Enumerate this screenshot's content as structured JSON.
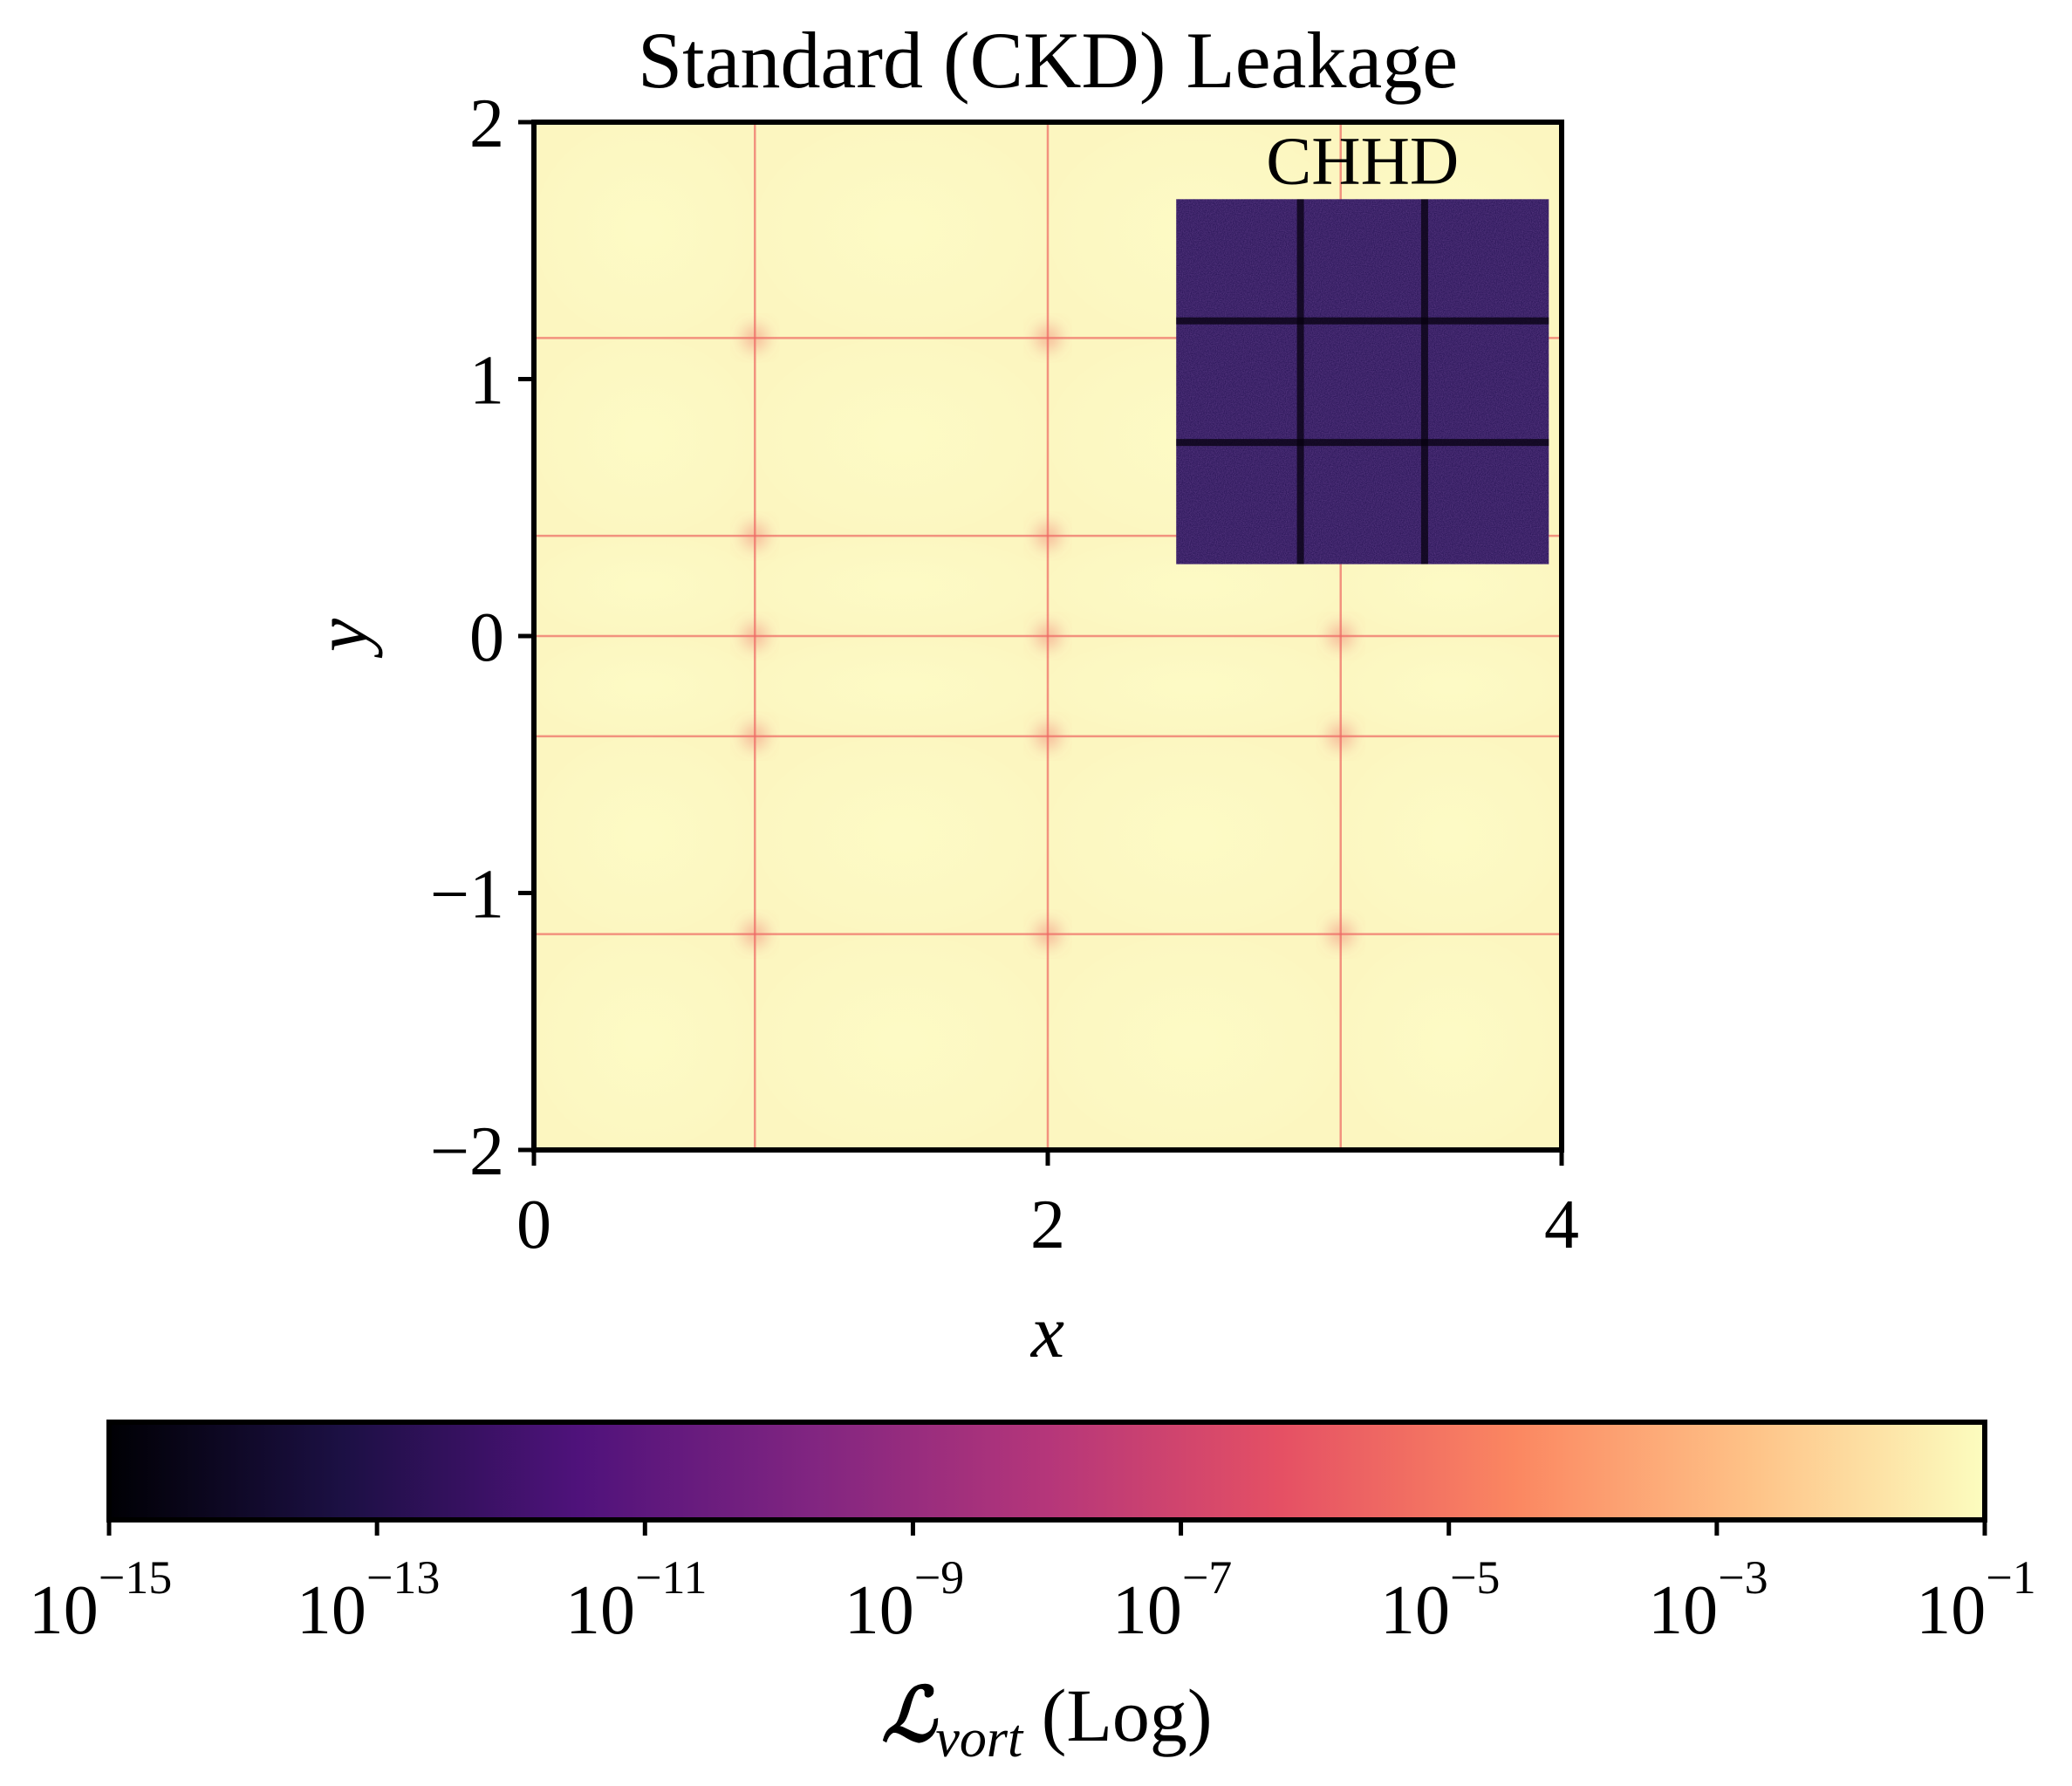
{
  "chart_data": {
    "type": "heatmap",
    "title": "Standard (CKD) Leakage",
    "xlabel": "x",
    "ylabel": "y",
    "xlim": [
      0,
      4
    ],
    "ylim": [
      -2,
      2
    ],
    "xticks": [
      {
        "value": 0,
        "label": "0"
      },
      {
        "value": 2,
        "label": "2"
      },
      {
        "value": 4,
        "label": "4"
      }
    ],
    "yticks": [
      {
        "value": 2,
        "label": "2"
      },
      {
        "value": 1,
        "label": "1"
      },
      {
        "value": 0,
        "label": "0"
      },
      {
        "value": -1,
        "label": "−1"
      },
      {
        "value": -2,
        "label": "−2"
      }
    ],
    "grid_lines_x": [
      0.86,
      2.0,
      3.14
    ],
    "grid_lines_y": [
      1.16,
      0.39,
      0.0,
      -0.39,
      -1.16
    ],
    "background_level": -1.5,
    "ridge_level": -5.5,
    "inset": {
      "title": "CHHD",
      "x_range": [
        2.5,
        3.95
      ],
      "y_range": [
        0.28,
        1.7
      ],
      "level": -13
    },
    "colorbar": {
      "colormap": "magma",
      "scale": "log",
      "label_main": "ℒ",
      "label_sub": "vort",
      "label_suffix": " (Log)",
      "ticks": [
        {
          "base": "10",
          "exp": "−15",
          "value": -15
        },
        {
          "base": "10",
          "exp": "−13",
          "value": -13
        },
        {
          "base": "10",
          "exp": "−11",
          "value": -11
        },
        {
          "base": "10",
          "exp": "−9",
          "value": -9
        },
        {
          "base": "10",
          "exp": "−7",
          "value": -7
        },
        {
          "base": "10",
          "exp": "−5",
          "value": -5
        },
        {
          "base": "10",
          "exp": "−3",
          "value": -3
        },
        {
          "base": "10",
          "exp": "−1",
          "value": -1
        }
      ],
      "range": [
        -15,
        -1
      ]
    }
  },
  "colors": {
    "magma_stops": [
      "#000004",
      "#1c1044",
      "#4f127b",
      "#812581",
      "#b5367a",
      "#e55064",
      "#fb8761",
      "#fec287",
      "#fcfdbf"
    ],
    "background": "#fcf6c0",
    "ridge": "#f47a5c",
    "inset": "#2a1658"
  }
}
